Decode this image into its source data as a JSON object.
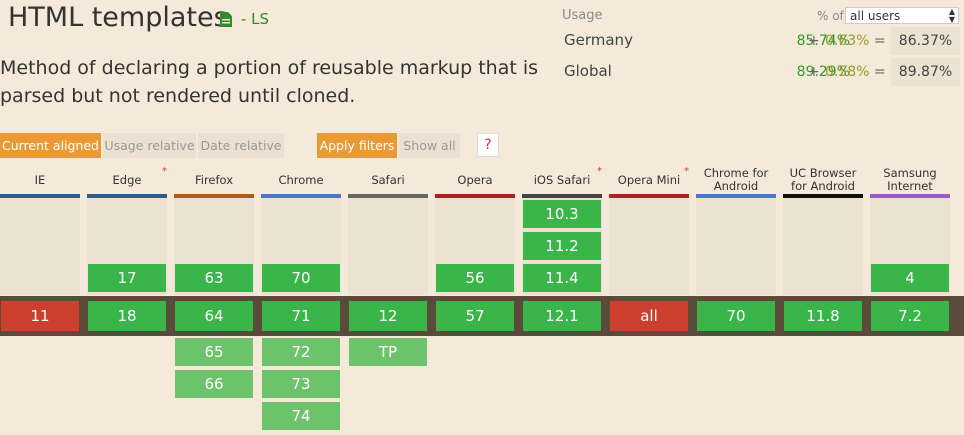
{
  "feature": {
    "title": "HTML templates",
    "ls_label": "- LS",
    "description": "Method of declaring a portion of reusable markup that is parsed but not rendered until cloned."
  },
  "usage": {
    "label": "Usage",
    "pct_of_label": "% of",
    "select_value": "all users",
    "rows": [
      {
        "country": "Germany",
        "full": "85.74%",
        "plus": "+",
        "partial": "0.63%",
        "eq": "=",
        "total": "86.37%"
      },
      {
        "country": "Global",
        "full": "89.29%",
        "plus": "+",
        "partial": "0.58%",
        "eq": "=",
        "total": "89.87%"
      }
    ]
  },
  "filters": {
    "current_aligned": "Current aligned",
    "usage_relative": "Usage relative",
    "date_relative": "Date relative",
    "apply_filters": "Apply filters",
    "show_all": "Show all",
    "help": "?"
  },
  "colors": {
    "supported": "#3ab54a",
    "supported_future": "#6cc36c",
    "unsupported": "#cc3e2e"
  },
  "browsers": [
    {
      "name": "IE",
      "bar": "#2e5a8c",
      "past": [],
      "current": "11",
      "current_status": "unsupported",
      "future": []
    },
    {
      "name": "Edge",
      "bar": "#2e5a8c",
      "star": true,
      "past": [
        "17"
      ],
      "current": "18",
      "current_status": "supported",
      "future": []
    },
    {
      "name": "Firefox",
      "bar": "#b05a22",
      "past": [
        "63"
      ],
      "current": "64",
      "current_status": "supported",
      "future": [
        "65",
        "66"
      ]
    },
    {
      "name": "Chrome",
      "bar": "#4a78c8",
      "past": [
        "70"
      ],
      "current": "71",
      "current_status": "supported",
      "future": [
        "72",
        "73",
        "74"
      ]
    },
    {
      "name": "Safari",
      "bar": "#666666",
      "past": [],
      "current": "12",
      "current_status": "supported",
      "future": [
        "TP"
      ]
    },
    {
      "name": "Opera",
      "bar": "#aa2222",
      "past": [
        "56"
      ],
      "current": "57",
      "current_status": "supported",
      "future": []
    },
    {
      "name": "iOS Safari",
      "bar": "#444444",
      "star": true,
      "past": [
        "10.3",
        "11.2",
        "11.4"
      ],
      "current": "12.1",
      "current_status": "supported",
      "future": []
    },
    {
      "name": "Opera Mini",
      "bar": "#aa2222",
      "star": true,
      "past": [],
      "current": "all",
      "current_status": "unsupported",
      "future": []
    },
    {
      "name": "Chrome for Android",
      "bar": "#4a78c8",
      "past": [],
      "current": "70",
      "current_status": "supported",
      "future": []
    },
    {
      "name": "UC Browser for Android",
      "bar": "#111111",
      "past": [],
      "current": "11.8",
      "current_status": "supported",
      "future": []
    },
    {
      "name": "Samsung Internet",
      "bar": "#9a5ac8",
      "past": [
        "4"
      ],
      "current": "7.2",
      "current_status": "supported",
      "future": []
    }
  ]
}
